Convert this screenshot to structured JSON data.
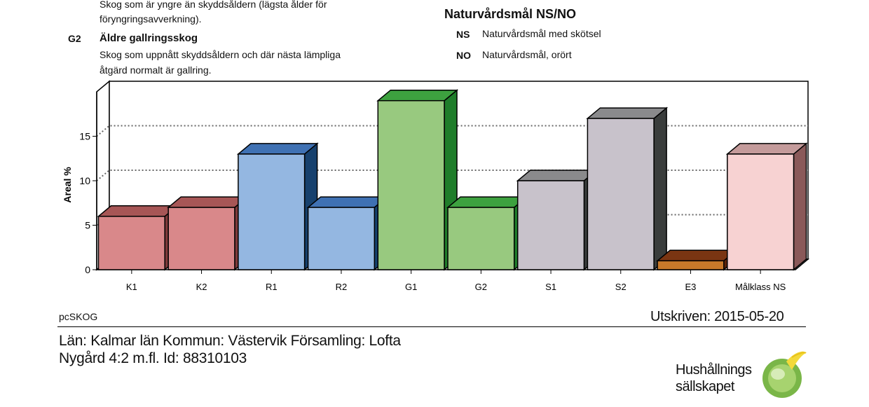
{
  "legend_top": {
    "g1_desc_line1": "Skog som är yngre än skyddsåldern (lägsta ålder för",
    "g1_desc_line2": "föryngringsavverkning).",
    "g2_code": "G2",
    "g2_title": "Äldre gallringsskog",
    "g2_desc_line1": "Skog som uppnått skyddsåldern och där nästa lämpliga",
    "g2_desc_line2": "åtgärd normalt är gallring.",
    "ns_heading": "Naturvårdsmål NS/NO",
    "ns_code": "NS",
    "ns_label": "Naturvårdsmål med skötsel",
    "no_code": "NO",
    "no_label": "Naturvårdsmål, orört"
  },
  "chart_data": {
    "type": "bar",
    "ylabel": "Areal %",
    "ylim": [
      0,
      20
    ],
    "yticks": [
      0,
      5,
      10,
      15
    ],
    "grid": true,
    "categories": [
      "K1",
      "K2",
      "R1",
      "R2",
      "G1",
      "G2",
      "S1",
      "S2",
      "E3",
      "Målklass  NS"
    ],
    "values": [
      6,
      7,
      13,
      7,
      19,
      7,
      10,
      17,
      1,
      13
    ],
    "colors": [
      "#d9888a",
      "#d9888a",
      "#94b7e1",
      "#94b7e1",
      "#98c97f",
      "#98c97f",
      "#c8c2cb",
      "#c8c2cb",
      "#c8792a",
      "#f7d2d2"
    ],
    "top_colors": [
      "#a75656",
      "#a75656",
      "#3f71b3",
      "#3f71b3",
      "#3da13f",
      "#3da13f",
      "#8a8a8c",
      "#8a8a8c",
      "#7a3512",
      "#c49b9b"
    ],
    "side_colors": [
      "#7e3a3a",
      "#7e3a3a",
      "#17416e",
      "#17416e",
      "#1f7d2a",
      "#1f7d2a",
      "#3a3d3c",
      "#3a3d3c",
      "#5a2308",
      "#8a5959"
    ]
  },
  "footer": {
    "software": "pcSKOG",
    "printed": "Utskriven: 2015-05-20",
    "location": "Län: Kalmar län   Kommun: Västervik   Församling: Lofta",
    "property": "Nygård 4:2 m.fl. Id: 88310103"
  },
  "logo": {
    "line1": "Hushållnings",
    "line2": "sällskapet"
  }
}
